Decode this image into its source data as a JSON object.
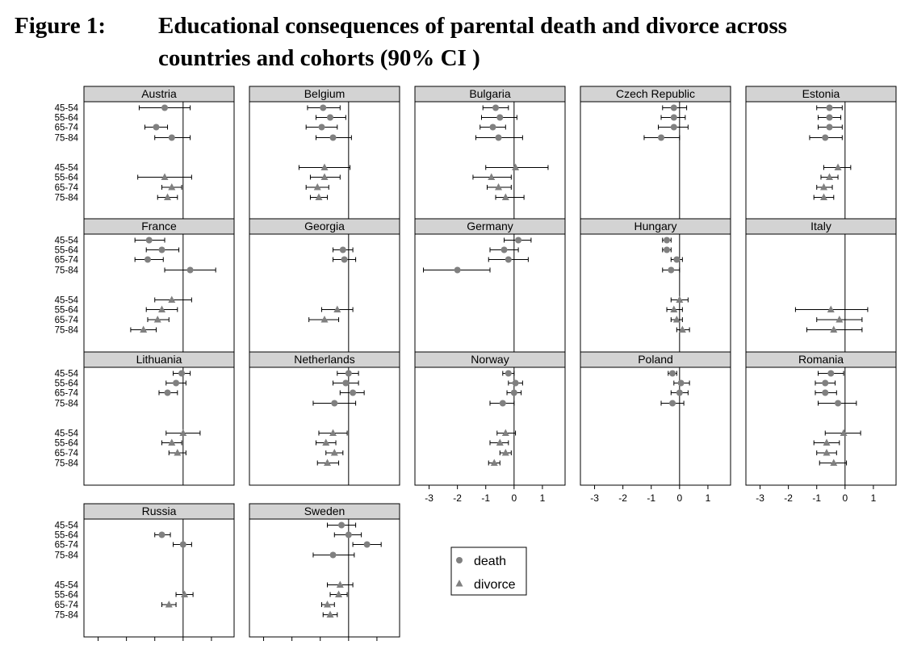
{
  "figure": {
    "label": "Figure 1:",
    "title": "Educational consequences of parental death and divorce across countries and cohorts (90% CI )"
  },
  "chart_data": [
    {
      "country": "Austria",
      "death": [
        [
          -0.65,
          -1.55,
          0.25
        ],
        [
          -0.95,
          -1.35,
          -0.55
        ],
        [
          -0.4,
          -1.0,
          0.25
        ]
      ],
      "death_first": -0.65,
      "divorce_first": null
    },
    {
      "country": "Belgium",
      "death": [],
      "divorce": []
    },
    {
      "country": "Bulgaria"
    },
    {
      "country": "Czech Republic"
    },
    {
      "country": "Estonia"
    },
    {
      "country": "France"
    },
    {
      "country": "Georgia"
    },
    {
      "country": "Germany"
    },
    {
      "country": "Hungary"
    },
    {
      "country": "Italy"
    },
    {
      "country": "Lithuania"
    },
    {
      "country": "Netherlands"
    },
    {
      "country": "Norway"
    },
    {
      "country": "Poland"
    },
    {
      "country": "Romania"
    },
    {
      "country": "Russia"
    },
    {
      "country": "Sweden"
    }
  ],
  "plot": {
    "type": "scatter",
    "cohorts": [
      "45-54",
      "55-64",
      "65-74",
      "75-84"
    ],
    "xlim": [
      -3.5,
      1.8
    ],
    "xticks": [
      -3,
      -2,
      -1,
      0,
      1
    ],
    "ref_line": 0,
    "series_names": [
      "death",
      "divorce"
    ],
    "colors": {
      "point": "#808080",
      "whisker": "#000000",
      "header": "#d3d3d3"
    },
    "legend": {
      "items": [
        {
          "label": "death",
          "marker": "circle"
        },
        {
          "label": "divorce",
          "marker": "triangle"
        }
      ]
    },
    "panels": [
      {
        "country": "Austria",
        "death": [
          [
            -0.65,
            -1.55,
            0.25
          ],
          null,
          [
            -0.95,
            -1.35,
            -0.55
          ],
          [
            -0.4,
            -1.0,
            0.25
          ]
        ],
        "divorce": [
          null,
          [
            -0.65,
            -1.6,
            0.3
          ],
          [
            -0.4,
            -0.75,
            -0.05
          ],
          [
            -0.55,
            -0.9,
            -0.2
          ]
        ]
      },
      {
        "country": "Belgium",
        "death": [
          [
            -0.9,
            -1.45,
            -0.3
          ],
          [
            -0.65,
            -1.15,
            -0.1
          ],
          [
            -0.95,
            -1.5,
            -0.4
          ],
          [
            -0.55,
            -1.15,
            0.1
          ]
        ],
        "divorce": [
          [
            -0.85,
            -1.75,
            0.05
          ],
          [
            -0.85,
            -1.35,
            -0.3
          ],
          [
            -1.1,
            -1.5,
            -0.7
          ],
          [
            -1.05,
            -1.35,
            -0.75
          ]
        ]
      },
      {
        "country": "Bulgaria",
        "death": [
          [
            -0.65,
            -1.1,
            -0.2
          ],
          [
            -0.5,
            -1.15,
            0.1
          ],
          [
            -0.75,
            -1.2,
            -0.3
          ],
          [
            -0.55,
            -1.35,
            0.3
          ]
        ],
        "divorce": [
          [
            0.05,
            -1.0,
            1.2
          ],
          [
            -0.8,
            -1.45,
            -0.1
          ],
          [
            -0.55,
            -0.95,
            -0.1
          ],
          [
            -0.3,
            -0.65,
            0.35
          ]
        ]
      },
      {
        "country": "Czech Republic",
        "death": [
          [
            -0.2,
            -0.6,
            0.25
          ],
          [
            -0.2,
            -0.65,
            0.2
          ],
          [
            -0.2,
            -0.75,
            0.3
          ],
          [
            -0.65,
            -1.25,
            0.0
          ]
        ],
        "divorce": [
          null,
          null,
          null,
          null
        ]
      },
      {
        "country": "Estonia",
        "death": [
          [
            -0.55,
            -1.0,
            -0.1
          ],
          [
            -0.55,
            -0.95,
            -0.15
          ],
          [
            -0.55,
            -0.95,
            -0.1
          ],
          [
            -0.7,
            -1.25,
            -0.1
          ]
        ],
        "divorce": [
          [
            -0.25,
            -0.75,
            0.2
          ],
          [
            -0.55,
            -0.85,
            -0.25
          ],
          [
            -0.75,
            -1.0,
            -0.45
          ],
          [
            -0.75,
            -1.1,
            -0.4
          ]
        ]
      },
      {
        "country": "France",
        "death": [
          [
            -1.2,
            -1.7,
            -0.65
          ],
          [
            -0.75,
            -1.3,
            -0.15
          ],
          [
            -1.25,
            -1.7,
            -0.7
          ],
          [
            0.25,
            -0.65,
            1.15
          ]
        ],
        "divorce": [
          [
            -0.4,
            -1.0,
            0.3
          ],
          [
            -0.75,
            -1.3,
            -0.2
          ],
          [
            -0.9,
            -1.25,
            -0.5
          ],
          [
            -1.4,
            -1.85,
            -0.95
          ]
        ]
      },
      {
        "country": "Georgia",
        "death": [
          null,
          [
            -0.2,
            -0.55,
            0.15
          ],
          [
            -0.15,
            -0.55,
            0.25
          ],
          null
        ],
        "divorce": [
          null,
          [
            -0.4,
            -0.95,
            0.15
          ],
          [
            -0.85,
            -1.4,
            -0.35
          ],
          null
        ]
      },
      {
        "country": "Germany",
        "death": [
          [
            0.15,
            -0.35,
            0.6
          ],
          [
            -0.35,
            -0.85,
            0.15
          ],
          [
            -0.2,
            -0.9,
            0.5
          ],
          [
            -2.0,
            -3.2,
            -0.85
          ]
        ],
        "divorce": [
          null,
          null,
          null,
          null
        ]
      },
      {
        "country": "Hungary",
        "death": [
          [
            -0.45,
            -0.6,
            -0.3
          ],
          [
            -0.45,
            -0.6,
            -0.3
          ],
          [
            -0.1,
            -0.3,
            0.1
          ],
          [
            -0.3,
            -0.6,
            0.0
          ]
        ],
        "divorce": [
          [
            0.0,
            -0.3,
            0.3
          ],
          [
            -0.2,
            -0.45,
            0.1
          ],
          [
            -0.1,
            -0.3,
            0.1
          ],
          [
            0.1,
            -0.1,
            0.35
          ]
        ]
      },
      {
        "country": "Italy",
        "death": [
          null,
          null,
          null,
          null
        ],
        "divorce": [
          null,
          [
            -0.5,
            -1.75,
            0.8
          ],
          [
            -0.2,
            -1.0,
            0.6
          ],
          [
            -0.4,
            -1.35,
            0.6
          ]
        ]
      },
      {
        "country": "Lithuania",
        "death": [
          [
            -0.05,
            -0.35,
            0.25
          ],
          [
            -0.25,
            -0.6,
            0.1
          ],
          [
            -0.55,
            -0.85,
            -0.2
          ],
          null
        ],
        "divorce": [
          [
            0.0,
            -0.6,
            0.6
          ],
          [
            -0.4,
            -0.75,
            -0.05
          ],
          [
            -0.2,
            -0.5,
            0.1
          ],
          null
        ]
      },
      {
        "country": "Netherlands",
        "death": [
          [
            0.0,
            -0.4,
            0.35
          ],
          [
            -0.1,
            -0.55,
            0.35
          ],
          [
            0.15,
            -0.3,
            0.55
          ],
          [
            -0.5,
            -1.25,
            0.25
          ]
        ],
        "divorce": [
          [
            -0.55,
            -1.05,
            -0.05
          ],
          [
            -0.8,
            -1.15,
            -0.45
          ],
          [
            -0.5,
            -0.8,
            -0.2
          ],
          [
            -0.75,
            -1.1,
            -0.35
          ]
        ]
      },
      {
        "country": "Norway",
        "death": [
          [
            -0.2,
            -0.4,
            0.0
          ],
          [
            0.05,
            -0.2,
            0.3
          ],
          [
            0.0,
            -0.25,
            0.25
          ],
          [
            -0.4,
            -0.85,
            0.0
          ]
        ],
        "divorce": [
          [
            -0.3,
            -0.6,
            0.05
          ],
          [
            -0.5,
            -0.85,
            -0.2
          ],
          [
            -0.3,
            -0.5,
            -0.1
          ],
          [
            -0.7,
            -0.9,
            -0.5
          ]
        ]
      },
      {
        "country": "Poland",
        "death": [
          [
            -0.25,
            -0.4,
            -0.1
          ],
          [
            0.05,
            -0.2,
            0.35
          ],
          [
            0.0,
            -0.3,
            0.3
          ],
          [
            -0.25,
            -0.65,
            0.15
          ]
        ],
        "divorce": [
          null,
          null,
          null,
          null
        ]
      },
      {
        "country": "Romania",
        "death": [
          [
            -0.5,
            -0.95,
            -0.05
          ],
          [
            -0.7,
            -1.05,
            -0.35
          ],
          [
            -0.7,
            -1.05,
            -0.3
          ],
          [
            -0.25,
            -0.95,
            0.4
          ]
        ],
        "divorce": [
          [
            -0.05,
            -0.7,
            0.55
          ],
          [
            -0.65,
            -1.1,
            -0.2
          ],
          [
            -0.65,
            -1.0,
            -0.3
          ],
          [
            -0.4,
            -0.9,
            0.05
          ]
        ]
      },
      {
        "country": "Russia",
        "death": [
          [
            null
          ],
          [
            -0.75,
            -1.0,
            -0.45
          ],
          [
            0.0,
            -0.35,
            0.3
          ],
          null
        ],
        "divorce": [
          null,
          [
            0.05,
            -0.25,
            0.35
          ],
          [
            -0.5,
            -0.75,
            -0.25
          ],
          null
        ]
      },
      {
        "country": "Sweden",
        "death": [
          [
            -0.25,
            -0.75,
            0.25
          ],
          [
            0.0,
            -0.5,
            0.45
          ],
          [
            0.65,
            0.15,
            1.15
          ],
          [
            -0.55,
            -1.25,
            0.2
          ]
        ],
        "divorce": [
          [
            -0.3,
            -0.75,
            0.15
          ],
          [
            -0.35,
            -0.65,
            -0.05
          ],
          [
            -0.75,
            -0.95,
            -0.5
          ],
          [
            -0.65,
            -0.9,
            -0.4
          ]
        ]
      }
    ]
  }
}
